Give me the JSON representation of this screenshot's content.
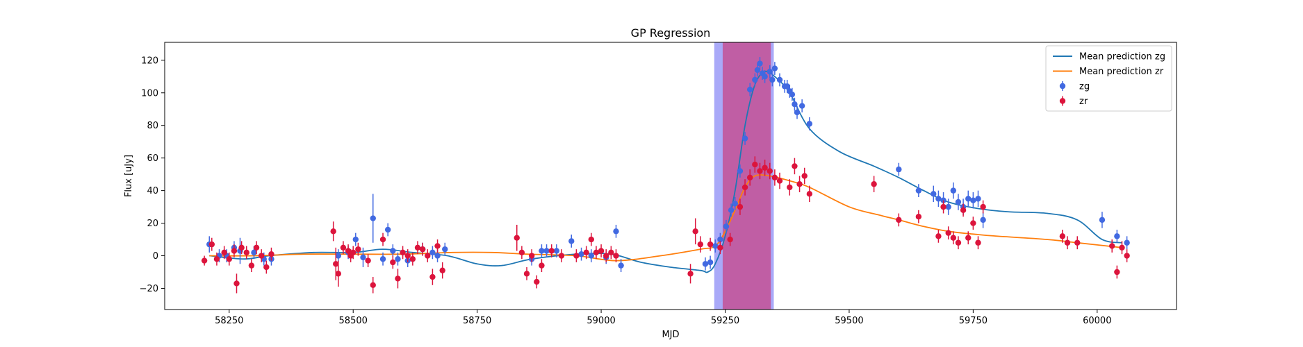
{
  "chart_data": {
    "type": "scatter",
    "title": "GP Regression",
    "xlabel": "MJD",
    "ylabel": "Flux [uJy]",
    "xlim": [
      58120,
      60160
    ],
    "ylim": [
      -33,
      131
    ],
    "xticks": [
      58250,
      58500,
      58750,
      59000,
      59250,
      59500,
      59750,
      60000
    ],
    "yticks": [
      -20,
      0,
      20,
      40,
      60,
      80,
      100,
      120
    ],
    "grid": false,
    "legend_position": "top-right",
    "shaded_regions": [
      {
        "x0": 59228,
        "x1": 59348,
        "color": "#7b7bf5",
        "alpha": 0.65
      },
      {
        "x0": 59245,
        "x1": 59342,
        "color": "#c2559a",
        "alpha": 0.9
      }
    ],
    "series": [
      {
        "name": "Mean prediction zg",
        "kind": "line",
        "color": "#1f77b4",
        "x": [
          58210,
          58280,
          58330,
          58420,
          58500,
          58560,
          58620,
          58690,
          58750,
          58800,
          58860,
          58950,
          59020,
          59080,
          59140,
          59200,
          59215,
          59230,
          59250,
          59270,
          59290,
          59310,
          59330,
          59350,
          59380,
          59420,
          59480,
          59550,
          59600,
          59650,
          59700,
          59760,
          59820,
          59900,
          59960,
          60010,
          60050
        ],
        "y": [
          0,
          -2,
          0,
          2,
          2,
          4,
          2,
          0,
          -5,
          -6,
          -2,
          1,
          1,
          -4,
          -7,
          -9,
          -10,
          -5,
          12,
          40,
          80,
          105,
          113,
          110,
          100,
          78,
          64,
          55,
          48,
          40,
          33,
          29,
          27,
          26,
          22,
          10,
          8
        ]
      },
      {
        "name": "Mean prediction zr",
        "kind": "line",
        "color": "#ff7f0e",
        "x": [
          58210,
          58300,
          58400,
          58500,
          58600,
          58700,
          58780,
          58850,
          58950,
          59030,
          59120,
          59200,
          59230,
          59250,
          59270,
          59290,
          59310,
          59340,
          59380,
          59420,
          59500,
          59560,
          59600,
          59650,
          59700,
          59760,
          59800,
          59900,
          59960,
          60050
        ],
        "y": [
          0,
          0,
          1,
          1,
          1,
          2,
          2,
          1,
          0,
          -3,
          0,
          4,
          6,
          15,
          28,
          42,
          49,
          49,
          46,
          42,
          30,
          25,
          22,
          18,
          15,
          13,
          12,
          10,
          8,
          5
        ]
      },
      {
        "name": "zg",
        "kind": "errorbar",
        "color": "#4169e1",
        "x": [
          58210,
          58230,
          58245,
          58260,
          58272,
          58300,
          58320,
          58335,
          58470,
          58490,
          58505,
          58520,
          58540,
          58560,
          58570,
          58580,
          58590,
          58610,
          58640,
          58660,
          58670,
          58685,
          58860,
          58880,
          58890,
          58910,
          58940,
          58960,
          58980,
          59010,
          59030,
          59040,
          59210,
          59220,
          59230,
          59240,
          59252,
          59262,
          59270,
          59280,
          59290,
          59300,
          59310,
          59315,
          59320,
          59325,
          59330,
          59340,
          59345,
          59350,
          59360,
          59370,
          59375,
          59380,
          59385,
          59390,
          59395,
          59405,
          59420,
          59600,
          59640,
          59670,
          59680,
          59690,
          59700,
          59710,
          59720,
          59730,
          59740,
          59750,
          59760,
          59770,
          60010,
          60040,
          60060
        ],
        "y": [
          7,
          0,
          0,
          5,
          3,
          2,
          -2,
          -2,
          0,
          2,
          10,
          -1,
          23,
          -2,
          16,
          3,
          -2,
          -3,
          4,
          2,
          0,
          4,
          -2,
          3,
          3,
          3,
          9,
          1,
          0,
          -1,
          15,
          -6,
          -5,
          -4,
          6,
          10,
          18,
          28,
          32,
          52,
          72,
          102,
          108,
          114,
          118,
          112,
          110,
          113,
          108,
          115,
          108,
          104,
          104,
          101,
          99,
          93,
          88,
          92,
          81,
          53,
          40,
          38,
          35,
          34,
          30,
          40,
          33,
          30,
          35,
          34,
          35,
          22,
          22,
          12,
          8
        ],
        "yerr": [
          5,
          4,
          4,
          4,
          8,
          4,
          4,
          4,
          4,
          4,
          4,
          6,
          15,
          4,
          4,
          4,
          4,
          4,
          4,
          4,
          4,
          4,
          4,
          4,
          4,
          4,
          4,
          4,
          4,
          4,
          4,
          4,
          4,
          4,
          4,
          4,
          4,
          4,
          4,
          4,
          4,
          4,
          4,
          4,
          4,
          4,
          4,
          4,
          4,
          4,
          4,
          4,
          4,
          4,
          4,
          4,
          4,
          4,
          4,
          4,
          4,
          5,
          5,
          5,
          5,
          5,
          5,
          5,
          5,
          5,
          5,
          5,
          5,
          4,
          4
        ]
      },
      {
        "name": "zr",
        "kind": "errorbar",
        "color": "#dc143c",
        "x": [
          58200,
          58215,
          58225,
          58240,
          58250,
          58260,
          58265,
          58275,
          58285,
          58295,
          58305,
          58315,
          58325,
          58335,
          58460,
          58465,
          58470,
          58480,
          58490,
          58495,
          58500,
          58510,
          58530,
          58540,
          58560,
          58580,
          58590,
          58600,
          58610,
          58620,
          58630,
          58640,
          58650,
          58660,
          58670,
          58680,
          58830,
          58840,
          58850,
          58860,
          58870,
          58880,
          58900,
          58920,
          58950,
          58970,
          58980,
          58990,
          59000,
          59010,
          59020,
          59030,
          59180,
          59190,
          59200,
          59220,
          59240,
          59260,
          59280,
          59290,
          59300,
          59310,
          59320,
          59330,
          59340,
          59350,
          59360,
          59380,
          59390,
          59400,
          59410,
          59420,
          59550,
          59600,
          59640,
          59680,
          59690,
          59700,
          59710,
          59720,
          59730,
          59740,
          59750,
          59760,
          59770,
          59930,
          59940,
          59960,
          60030,
          60040,
          60050,
          60060
        ],
        "y": [
          -3,
          7,
          -2,
          2,
          -2,
          3,
          -17,
          5,
          2,
          -6,
          5,
          0,
          -7,
          1,
          15,
          -5,
          -11,
          5,
          3,
          0,
          2,
          4,
          -3,
          -18,
          10,
          -4,
          -14,
          2,
          0,
          -2,
          5,
          4,
          0,
          -13,
          6,
          -9,
          11,
          2,
          -11,
          0,
          -16,
          -6,
          3,
          0,
          0,
          2,
          10,
          2,
          3,
          0,
          2,
          0,
          -11,
          15,
          7,
          7,
          5,
          10,
          30,
          42,
          48,
          56,
          52,
          54,
          52,
          48,
          46,
          42,
          55,
          44,
          49,
          38,
          44,
          22,
          24,
          12,
          30,
          14,
          11,
          8,
          28,
          11,
          20,
          8,
          30,
          12,
          8,
          8,
          6,
          -10,
          5,
          0
        ],
        "yerr": [
          3,
          4,
          4,
          4,
          4,
          4,
          6,
          4,
          4,
          4,
          4,
          4,
          4,
          4,
          6,
          10,
          8,
          4,
          4,
          4,
          4,
          4,
          4,
          5,
          4,
          4,
          6,
          4,
          4,
          4,
          4,
          4,
          4,
          5,
          4,
          5,
          8,
          4,
          4,
          4,
          4,
          4,
          4,
          4,
          4,
          4,
          4,
          4,
          4,
          4,
          4,
          4,
          6,
          8,
          5,
          4,
          4,
          4,
          5,
          5,
          5,
          5,
          5,
          5,
          5,
          5,
          5,
          5,
          5,
          5,
          5,
          5,
          5,
          4,
          4,
          4,
          4,
          4,
          4,
          4,
          4,
          4,
          4,
          4,
          4,
          4,
          4,
          4,
          4,
          4,
          4,
          4
        ]
      }
    ]
  }
}
